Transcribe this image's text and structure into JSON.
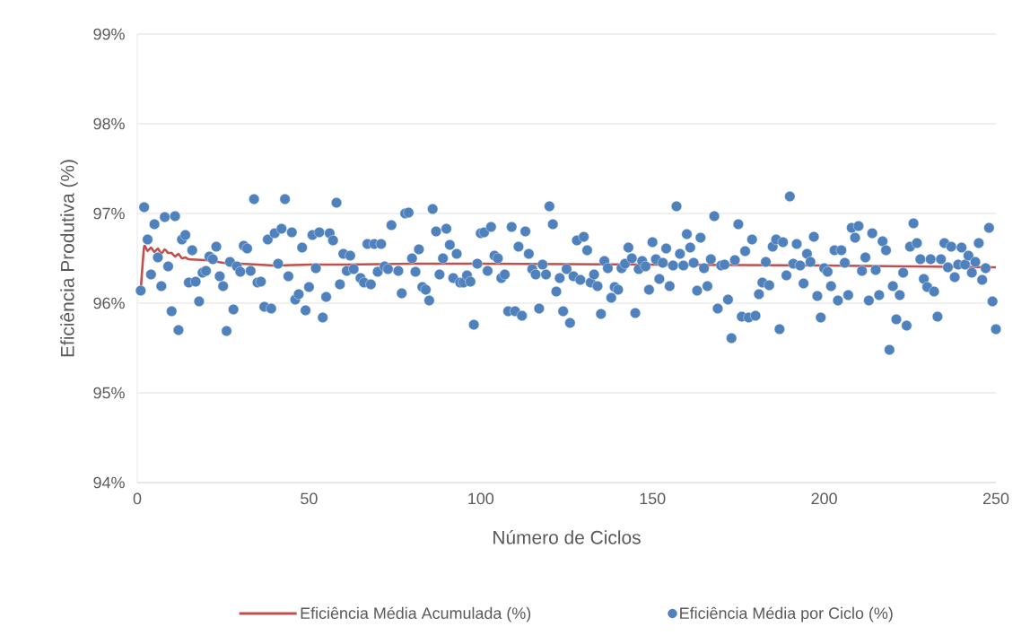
{
  "chart_data": {
    "type": "scatter",
    "xlabel": "Número de Ciclos",
    "ylabel": "Eficiência Produtiva (%)",
    "xlim": [
      0,
      250
    ],
    "xticks": [
      0,
      50,
      100,
      150,
      200,
      250
    ],
    "ylim": [
      94,
      99
    ],
    "yticks": [
      {
        "value": 94,
        "label": "94%"
      },
      {
        "value": 95,
        "label": "95%"
      },
      {
        "value": 96,
        "label": "96%"
      },
      {
        "value": 97,
        "label": "97%"
      },
      {
        "value": 98,
        "label": "98%"
      },
      {
        "value": 99,
        "label": "99%"
      }
    ],
    "grid": "y",
    "legend": "bottom",
    "series": [
      {
        "name": "Eficiência Média Acumulada (%)",
        "type": "line",
        "color": "#c0504d",
        "marker": "none",
        "x": [
          1,
          2,
          3,
          4,
          5,
          6,
          7,
          8,
          9,
          10,
          11,
          12,
          13,
          14,
          15,
          20,
          25,
          30,
          35,
          40,
          50,
          60,
          80,
          100,
          150,
          200,
          250
        ],
        "values": [
          96.14,
          96.63,
          96.58,
          96.62,
          96.57,
          96.61,
          96.55,
          96.6,
          96.56,
          96.56,
          96.52,
          96.55,
          96.5,
          96.51,
          96.49,
          96.48,
          96.45,
          96.44,
          96.43,
          96.42,
          96.43,
          96.43,
          96.44,
          96.44,
          96.43,
          96.42,
          96.4
        ]
      },
      {
        "name": "Eficiência Média por Ciclo (%)",
        "color": "#4f81bd",
        "marker": "circle",
        "x": [
          1,
          2,
          3,
          4,
          5,
          6,
          7,
          8,
          9,
          10,
          11,
          12,
          13,
          14,
          15,
          16,
          17,
          18,
          19,
          20,
          21,
          22,
          23,
          24,
          25,
          26,
          27,
          28,
          29,
          30,
          31,
          32,
          33,
          34,
          35,
          36,
          37,
          38,
          39,
          40,
          41,
          42,
          43,
          44,
          45,
          46,
          47,
          48,
          49,
          50,
          51,
          52,
          53,
          54,
          55,
          56,
          57,
          58,
          59,
          60,
          61,
          62,
          63,
          65,
          66,
          67,
          68,
          69,
          70,
          71,
          72,
          73,
          74,
          76,
          77,
          78,
          79,
          80,
          81,
          82,
          83,
          84,
          85,
          86,
          87,
          88,
          89,
          90,
          91,
          92,
          93,
          94,
          95,
          96,
          97,
          98,
          99,
          100,
          101,
          102,
          103,
          104,
          105,
          106,
          107,
          108,
          109,
          110,
          111,
          112,
          113,
          114,
          115,
          116,
          117,
          118,
          119,
          120,
          121,
          122,
          123,
          124,
          125,
          126,
          127,
          128,
          129,
          130,
          131,
          132,
          133,
          134,
          135,
          136,
          137,
          138,
          139,
          140,
          141,
          142,
          143,
          144,
          145,
          146,
          147,
          148,
          149,
          150,
          151,
          152,
          153,
          154,
          155,
          156,
          157,
          158,
          159,
          160,
          161,
          162,
          163,
          164,
          165,
          166,
          167,
          168,
          169,
          170,
          171,
          172,
          173,
          174,
          175,
          176,
          177,
          178,
          179,
          180,
          181,
          182,
          183,
          184,
          185,
          186,
          187,
          188,
          189,
          190,
          191,
          192,
          193,
          194,
          195,
          196,
          197,
          198,
          199,
          200,
          201,
          202,
          203,
          204,
          205,
          206,
          207,
          208,
          209,
          210,
          211,
          212,
          213,
          214,
          215,
          216,
          217,
          218,
          219,
          220,
          221,
          222,
          223,
          224,
          225,
          226,
          227,
          228,
          229,
          230,
          231,
          232,
          233,
          234,
          235,
          236,
          237,
          238,
          239,
          240,
          241,
          242,
          243,
          244,
          245,
          246,
          247,
          248,
          249,
          250
        ],
        "values": [
          96.14,
          97.07,
          96.71,
          96.32,
          96.88,
          96.51,
          96.19,
          96.96,
          96.41,
          95.91,
          96.97,
          95.7,
          96.71,
          96.76,
          96.23,
          96.59,
          96.24,
          96.02,
          96.34,
          96.36,
          96.52,
          96.49,
          96.63,
          96.3,
          96.19,
          95.69,
          96.46,
          95.93,
          96.41,
          96.35,
          96.64,
          96.61,
          96.36,
          97.16,
          96.23,
          96.24,
          95.96,
          96.71,
          95.94,
          96.78,
          96.44,
          96.83,
          97.16,
          96.3,
          96.79,
          96.04,
          96.1,
          96.62,
          95.92,
          96.18,
          96.76,
          96.39,
          96.79,
          95.84,
          96.07,
          96.78,
          96.7,
          97.12,
          96.21,
          96.55,
          96.36,
          96.53,
          96.38,
          96.28,
          96.23,
          96.66,
          96.21,
          96.66,
          96.35,
          96.66,
          96.41,
          96.38,
          96.87,
          96.36,
          96.11,
          97.0,
          97.01,
          96.5,
          96.35,
          96.6,
          96.18,
          96.15,
          96.03,
          97.05,
          96.8,
          96.32,
          96.5,
          96.83,
          96.65,
          96.28,
          96.55,
          96.23,
          96.23,
          96.31,
          96.24,
          95.76,
          96.44,
          96.78,
          96.79,
          96.36,
          96.85,
          96.53,
          96.5,
          96.28,
          96.32,
          95.91,
          96.85,
          95.91,
          96.63,
          95.86,
          96.8,
          96.55,
          96.38,
          96.32,
          95.94,
          96.43,
          96.32,
          97.08,
          96.88,
          96.13,
          96.28,
          95.91,
          96.38,
          95.78,
          96.3,
          96.7,
          96.26,
          96.74,
          96.59,
          96.23,
          96.32,
          96.19,
          95.88,
          96.47,
          96.39,
          96.06,
          96.18,
          96.15,
          96.39,
          96.44,
          96.62,
          96.5,
          95.89,
          96.38,
          96.47,
          96.41,
          96.15,
          96.68,
          96.49,
          96.27,
          96.45,
          96.61,
          96.19,
          96.42,
          97.08,
          96.55,
          96.42,
          96.77,
          96.62,
          96.45,
          96.14,
          96.73,
          96.39,
          96.19,
          96.49,
          96.97,
          95.94,
          96.42,
          96.43,
          96.04,
          95.61,
          96.48,
          96.88,
          95.85,
          96.58,
          95.84,
          96.71,
          95.86,
          96.1,
          96.23,
          96.46,
          96.2,
          96.63,
          96.71,
          95.71,
          96.68,
          96.31,
          97.19,
          96.44,
          96.66,
          96.42,
          96.22,
          96.55,
          96.46,
          96.74,
          96.08,
          95.84,
          96.39,
          96.35,
          96.19,
          96.59,
          96.03,
          96.59,
          96.45,
          96.09,
          96.84,
          96.73,
          96.86,
          96.36,
          96.51,
          96.03,
          96.78,
          96.37,
          96.09,
          96.69,
          96.59,
          95.48,
          96.19,
          95.82,
          96.09,
          96.34,
          95.75,
          96.63,
          96.89,
          96.67,
          96.49,
          96.27,
          96.18,
          96.49,
          96.13,
          95.85,
          96.49,
          96.67,
          96.4,
          96.63,
          96.29,
          96.43,
          96.62,
          96.43,
          96.53,
          96.34,
          96.46,
          96.67,
          96.26,
          96.39,
          96.84,
          96.02,
          95.71
        ]
      }
    ]
  }
}
